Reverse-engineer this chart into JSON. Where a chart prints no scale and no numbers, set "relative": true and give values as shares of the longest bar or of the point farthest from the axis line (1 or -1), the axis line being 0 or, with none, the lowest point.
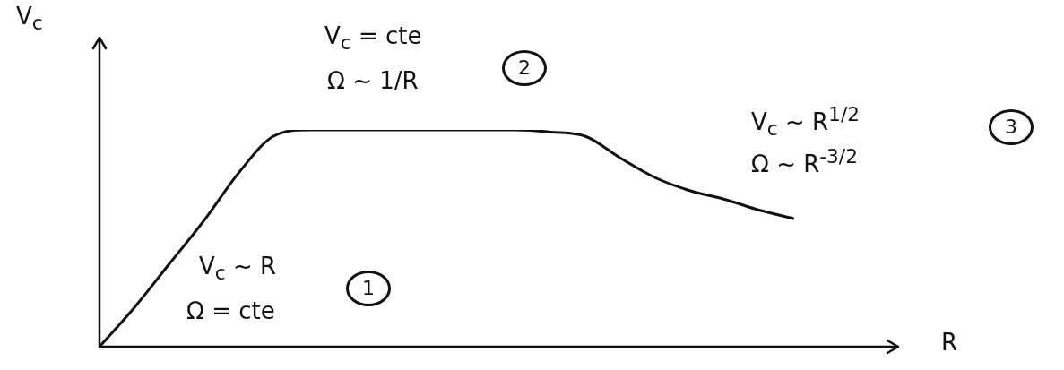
{
  "chart_data": {
    "type": "line",
    "relative": true,
    "xlabel": "R",
    "ylabel": "V$_{c}$",
    "color": "#111111",
    "marker": "none",
    "grid": false,
    "legend": false,
    "categories": [
      null,
      null,
      null,
      null,
      null,
      null,
      null,
      null,
      null,
      null,
      null,
      null,
      null,
      null,
      null,
      null,
      null,
      null,
      null,
      null,
      null,
      null,
      null,
      null
    ],
    "values": [
      0,
      0.18,
      0.38,
      0.58,
      0.8,
      0.97,
      1,
      1,
      1,
      1,
      1,
      1,
      1,
      0.99,
      0.97,
      0.87,
      0.78,
      0.72,
      0.68,
      0.63,
      0.59,
      null,
      null,
      null
    ],
    "annotations": [
      "V$_{c}$ ~ R",
      "Ω = cte",
      "1",
      "V$_{c}$ = cte",
      "Ω ~ 1/R",
      "2",
      "V$_{c}$ ~ R$^{1/2}$",
      "Ω ~ R$^{-3/2}$",
      "3"
    ]
  }
}
